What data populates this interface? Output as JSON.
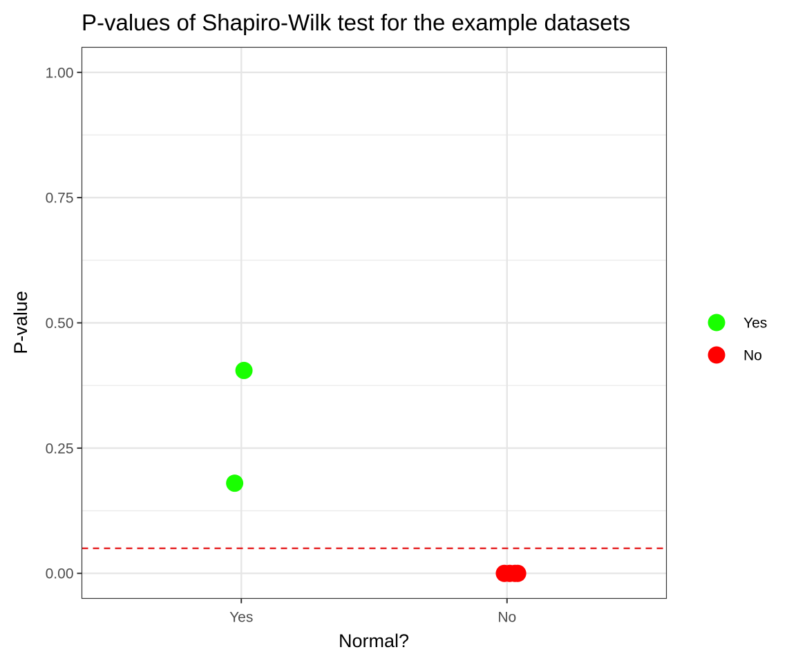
{
  "chart_data": {
    "type": "scatter",
    "title": "P-values of Shapiro-Wilk test for the example datasets",
    "xlabel": "Normal?",
    "ylabel": "P-value",
    "categories": [
      "Yes",
      "No"
    ],
    "ylim": [
      -0.05,
      1.05
    ],
    "yticks": [
      {
        "value": 0.0,
        "label": "0.00"
      },
      {
        "value": 0.25,
        "label": "0.25"
      },
      {
        "value": 0.5,
        "label": "0.50"
      },
      {
        "value": 0.75,
        "label": "0.75"
      },
      {
        "value": 1.0,
        "label": "1.00"
      }
    ],
    "grid": true,
    "reference_line": {
      "y": 0.05,
      "style": "dashed",
      "color": "#e41a1c"
    },
    "series": [
      {
        "name": "Yes",
        "color": "#19ff00",
        "points": [
          {
            "category": "Yes",
            "jitter": 0.01,
            "y": 0.405
          },
          {
            "category": "Yes",
            "jitter": -0.025,
            "y": 0.18
          }
        ]
      },
      {
        "name": "No",
        "color": "#ff0000",
        "points": [
          {
            "category": "No",
            "jitter": -0.01,
            "y": 0.0
          },
          {
            "category": "No",
            "jitter": 0.01,
            "y": 0.0
          },
          {
            "category": "No",
            "jitter": 0.03,
            "y": 0.0
          },
          {
            "category": "No",
            "jitter": 0.04,
            "y": 0.0
          }
        ]
      }
    ],
    "legend": {
      "placement": "right",
      "entries": [
        {
          "label": "Yes",
          "color": "#19ff00"
        },
        {
          "label": "No",
          "color": "#ff0000"
        }
      ]
    }
  }
}
